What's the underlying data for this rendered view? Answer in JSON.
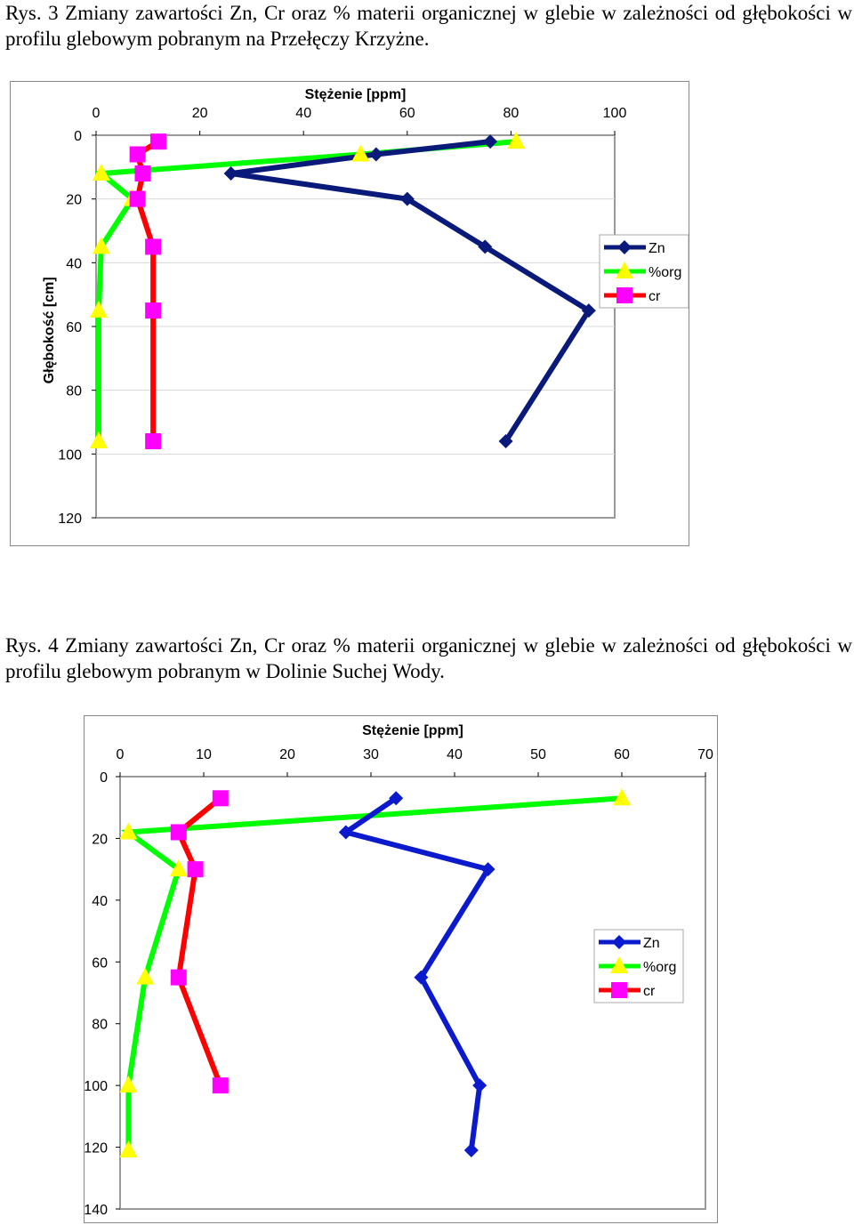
{
  "captions": {
    "fig3": "Rys. 3 Zmiany zawartości Zn, Cr oraz % materii organicznej w glebie w zależności od głębokości w profilu glebowym pobranym na Przełęczy Krzyżne.",
    "fig4": "Rys. 4 Zmiany zawartości Zn, Cr oraz % materii organicznej w glebie w zależności od głębokości w profilu glebowym pobranym w Dolinie Suchej Wody."
  },
  "chart_data": [
    {
      "type": "line",
      "xlabel": "Stężenie [ppm]",
      "ylabel": "Głębokość [cm]",
      "xlim": [
        0,
        100
      ],
      "ylim": [
        0,
        120
      ],
      "xticks": [
        0,
        20,
        40,
        60,
        80,
        100
      ],
      "yticks": [
        0,
        20,
        40,
        60,
        80,
        100,
        120
      ],
      "y_axis_inverted": true,
      "grid": "horizontal",
      "legend_position": "right",
      "series": [
        {
          "name": "Zn",
          "color": "#0a1a7a",
          "marker": "diamond",
          "points": [
            [
              76,
              2
            ],
            [
              54,
              6
            ],
            [
              26,
              12
            ],
            [
              60,
              20
            ],
            [
              75,
              35
            ],
            [
              95,
              55
            ],
            [
              79,
              96
            ]
          ]
        },
        {
          "name": "%org",
          "color": "#00ff00",
          "marker": "triangle",
          "points": [
            [
              81,
              2
            ],
            [
              51,
              6
            ],
            [
              1,
              12
            ],
            [
              7,
              20
            ],
            [
              1,
              35
            ],
            [
              0.5,
              55
            ],
            [
              0.5,
              96
            ]
          ]
        },
        {
          "name": "cr",
          "color": "#ff0000",
          "marker": "square",
          "points": [
            [
              12,
              2
            ],
            [
              8,
              6
            ],
            [
              9,
              12
            ],
            [
              8,
              20
            ],
            [
              11,
              35
            ],
            [
              11,
              55
            ],
            [
              11,
              96
            ]
          ]
        }
      ]
    },
    {
      "type": "line",
      "xlabel": "Stężenie [ppm]",
      "ylabel": "Głębokość [cm]",
      "xlim": [
        0,
        70
      ],
      "ylim": [
        0,
        140
      ],
      "xticks": [
        0,
        10,
        20,
        30,
        40,
        50,
        60,
        70
      ],
      "yticks": [
        0,
        20,
        40,
        60,
        80,
        100,
        120,
        140
      ],
      "y_axis_inverted": true,
      "grid": "none",
      "legend_position": "right",
      "series": [
        {
          "name": "Zn",
          "color": "#0a1acc",
          "marker": "diamond",
          "points": [
            [
              33,
              7
            ],
            [
              27,
              18
            ],
            [
              44,
              30
            ],
            [
              36,
              65
            ],
            [
              43,
              100
            ],
            [
              42,
              121
            ]
          ]
        },
        {
          "name": "%org",
          "color": "#00ff00",
          "marker": "triangle",
          "points": [
            [
              60,
              7
            ],
            [
              1,
              18
            ],
            [
              7,
              30
            ],
            [
              3,
              65
            ],
            [
              1,
              100
            ],
            [
              1,
              121
            ]
          ]
        },
        {
          "name": "cr",
          "color": "#ff0000",
          "marker": "square",
          "points": [
            [
              12,
              7
            ],
            [
              7,
              18
            ],
            [
              9,
              30
            ],
            [
              7,
              65
            ],
            [
              12,
              100
            ]
          ]
        }
      ]
    }
  ]
}
